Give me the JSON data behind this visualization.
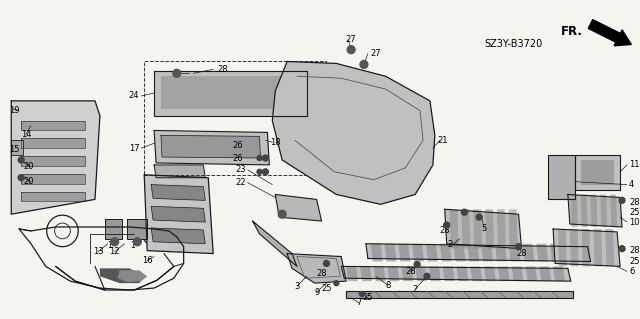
{
  "bg_color": "#f5f5f0",
  "diagram_code": "SZ3Y-B3720",
  "fig_width": 6.4,
  "fig_height": 3.19,
  "dpi": 100,
  "line_color": "#1a1a1a",
  "gray_fill": "#b0b0b0",
  "light_gray": "#d8d8d8",
  "label_fontsize": 6.0,
  "diagram_label_fontsize": 7.0
}
